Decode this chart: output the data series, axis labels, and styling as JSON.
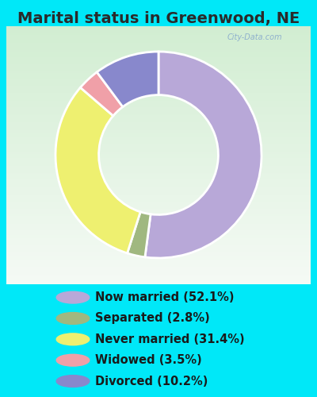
{
  "title": "Marital status in Greenwood, NE",
  "title_color": "#2a2a2a",
  "title_fontsize": 14,
  "cyan_bg": "#00e8f8",
  "chart_bg_top_color": "#d0ece0",
  "chart_bg_bottom_color": "#e8f8e0",
  "legend_bg": "#00e8f8",
  "slices": [
    {
      "label": "Now married (52.1%)",
      "value": 52.1,
      "color": "#b8a8d8"
    },
    {
      "label": "Separated (2.8%)",
      "value": 2.8,
      "color": "#a0b880"
    },
    {
      "label": "Never married (31.4%)",
      "value": 31.4,
      "color": "#eef070"
    },
    {
      "label": "Widowed (3.5%)",
      "value": 3.5,
      "color": "#f0a0a8"
    },
    {
      "label": "Divorced (10.2%)",
      "value": 10.2,
      "color": "#8888cc"
    }
  ],
  "watermark": "City-Data.com",
  "legend_fontsize": 10.5
}
